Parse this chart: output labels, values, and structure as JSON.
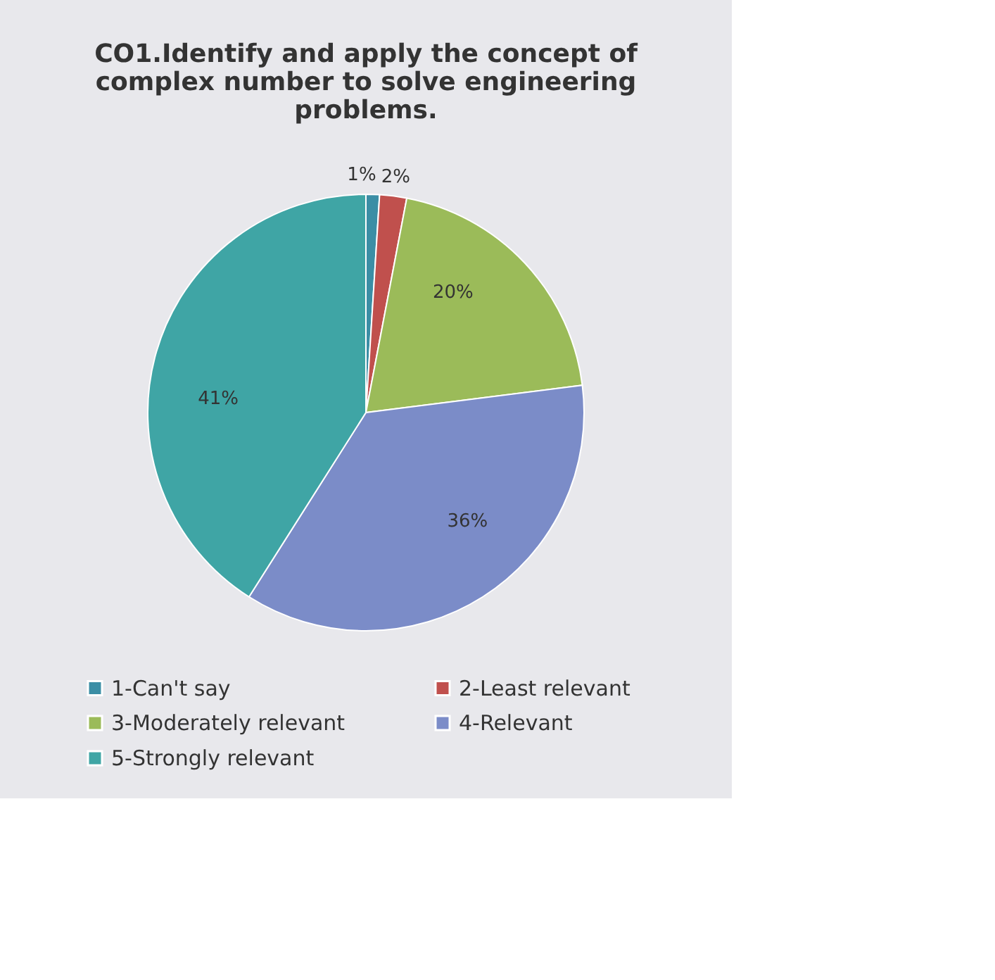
{
  "chart_data": {
    "type": "pie",
    "title": [
      "CO1.Identify and apply the concept of",
      "complex number to solve engineering",
      "problems."
    ],
    "categories": [
      "1-Can't say",
      "2-Least relevant",
      "3-Moderately relevant",
      "4-Relevant",
      "5-Strongly relevant"
    ],
    "values": [
      1,
      2,
      20,
      36,
      41
    ],
    "value_labels": [
      "1%",
      "2%",
      "20%",
      "36%",
      "41%"
    ],
    "colors": [
      "#3b8ea5",
      "#c0504d",
      "#9bbb59",
      "#7b8cc8",
      "#3fa5a5"
    ],
    "legend": "bottom"
  }
}
